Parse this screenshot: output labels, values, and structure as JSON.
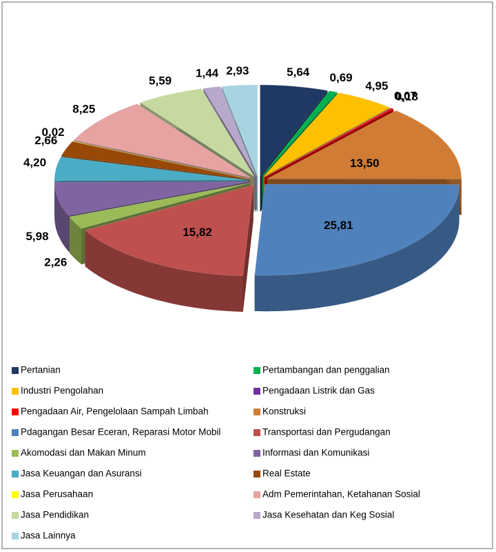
{
  "chart_data": {
    "type": "pie",
    "categories": [
      "Pertanian",
      "Pertambangan dan penggalian",
      "Industri Pengolahan",
      "Pengadaan Listrik dan Gas",
      "Pengadaan Air, Pengelolaan Sampah Limbah",
      "Konstruksi",
      "Pdagangan Besar Eceran, Reparasi Motor Mobil",
      "Transportasi dan Pergudangan",
      "Akomodasi dan Makan Minum",
      "Informasi dan Komunikasi",
      "Jasa Keuangan dan Asuransi",
      "Real Estate",
      "Jasa Perusahaan",
      "Adm Pemerintahan, Ketahanan Sosial",
      "Jasa Pendidikan",
      "Jasa Kesehatan dan Keg Sosial",
      "Jasa Lainnya"
    ],
    "values": [
      5.64,
      0.69,
      4.95,
      0.07,
      0.18,
      13.5,
      25.81,
      15.82,
      2.26,
      5.98,
      4.2,
      2.66,
      0.02,
      8.25,
      5.59,
      1.44,
      2.93
    ],
    "value_labels": [
      "5,64",
      "0,69",
      "4,95",
      "0,07",
      "0,18",
      "13,50",
      "25,81",
      "15,82",
      "2,26",
      "5,98",
      "4,20",
      "2,66",
      "0,02",
      "8,25",
      "5,59",
      "1,44",
      "2,93"
    ],
    "colors": [
      "#1f3864",
      "#00b050",
      "#ffc000",
      "#7030a0",
      "#ff0000",
      "#d07c35",
      "#4f81bd",
      "#c0504d",
      "#9bbb59",
      "#8064a2",
      "#4bacc6",
      "#984807",
      "#ffff00",
      "#e6a3a1",
      "#c6d9a0",
      "#b7a8cc",
      "#a8d4e2"
    ],
    "legend": "bottom"
  }
}
